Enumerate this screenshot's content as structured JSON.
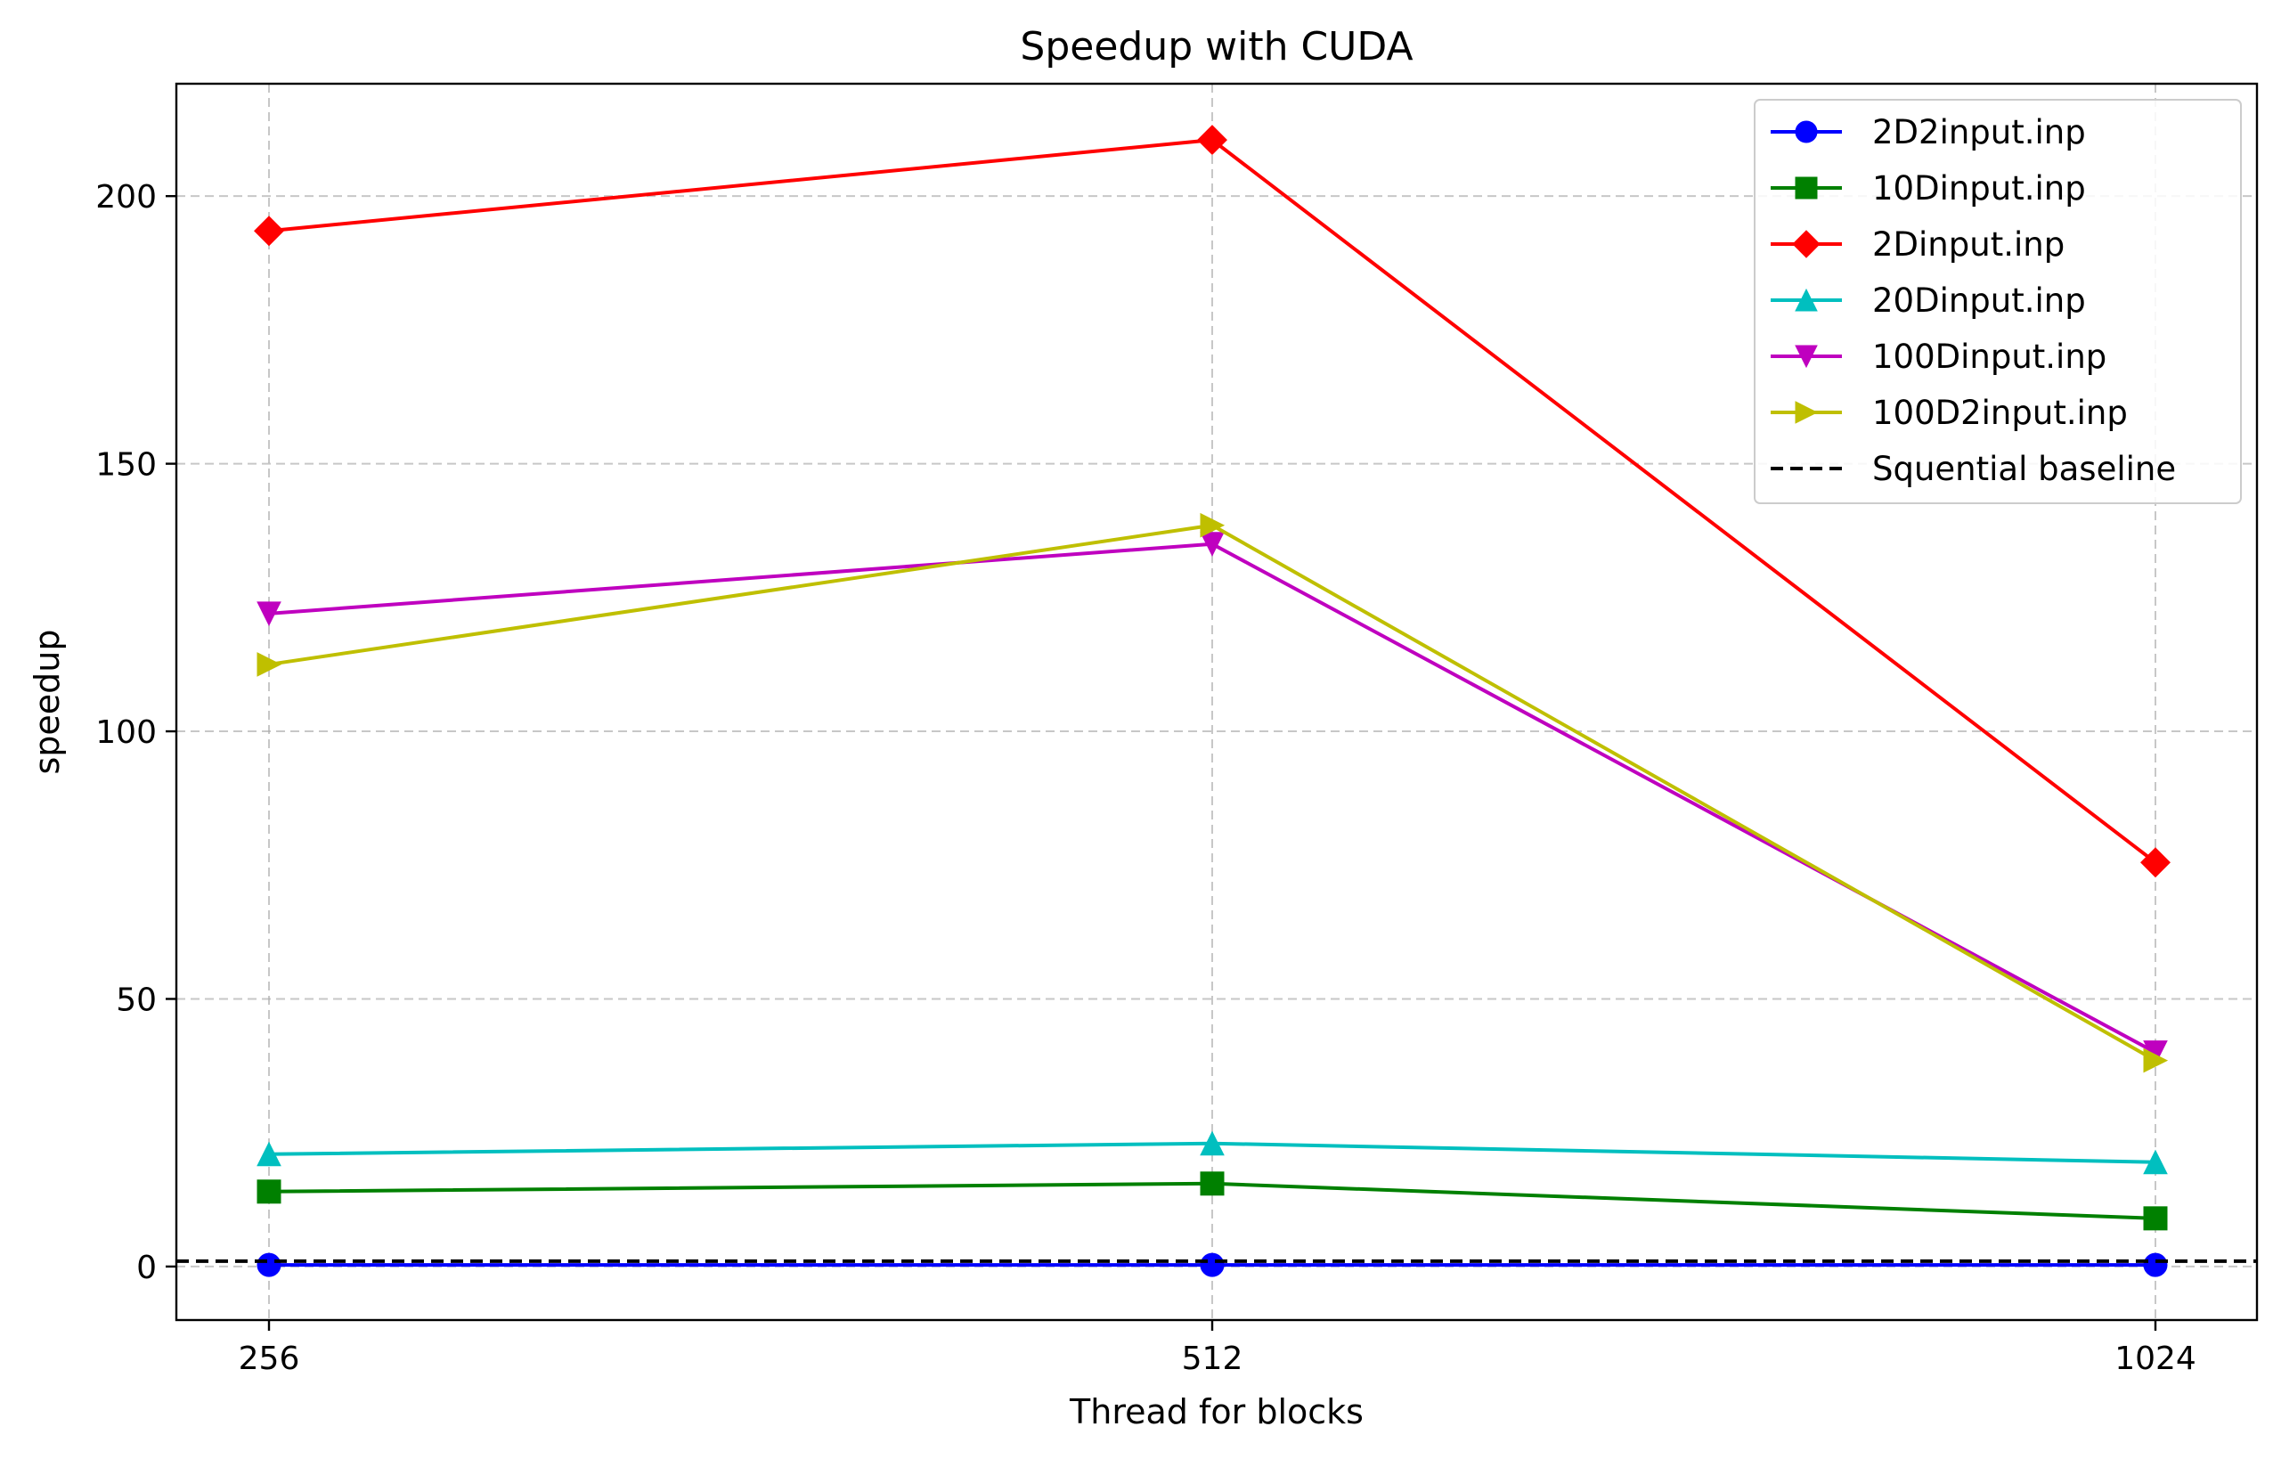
{
  "chart_data": {
    "type": "line",
    "title": "Speedup with CUDA",
    "xlabel": "Thread for blocks",
    "ylabel": "speedup",
    "categories": [
      "256",
      "512",
      "1024"
    ],
    "ylim": [
      -10,
      221
    ],
    "yticks": [
      0,
      50,
      100,
      150,
      200
    ],
    "grid": true,
    "legend_position": "top-right",
    "series": [
      {
        "name": "2D2input.inp",
        "values": [
          0.3,
          0.3,
          0.3
        ],
        "color": "#0000ff",
        "marker": "circle",
        "dash": "solid"
      },
      {
        "name": "10Dinput.inp",
        "values": [
          14,
          15.5,
          9
        ],
        "color": "#008000",
        "marker": "square",
        "dash": "solid"
      },
      {
        "name": "2Dinput.inp",
        "values": [
          193.5,
          210.5,
          75.5
        ],
        "color": "#ff0000",
        "marker": "diamond",
        "dash": "solid"
      },
      {
        "name": "20Dinput.inp",
        "values": [
          21,
          23,
          19.5
        ],
        "color": "#00bfbf",
        "marker": "triangle-up",
        "dash": "solid"
      },
      {
        "name": "100Dinput.inp",
        "values": [
          122,
          135,
          40
        ],
        "color": "#bf00bf",
        "marker": "triangle-down",
        "dash": "solid"
      },
      {
        "name": "100D2input.inp",
        "values": [
          112.5,
          138.5,
          38.5
        ],
        "color": "#bfbf00",
        "marker": "triangle-right",
        "dash": "solid"
      },
      {
        "name": "Squential baseline",
        "values": [
          1,
          1,
          1
        ],
        "color": "#000000",
        "marker": "none",
        "dash": "dashed",
        "spans_full_width": true
      }
    ]
  }
}
